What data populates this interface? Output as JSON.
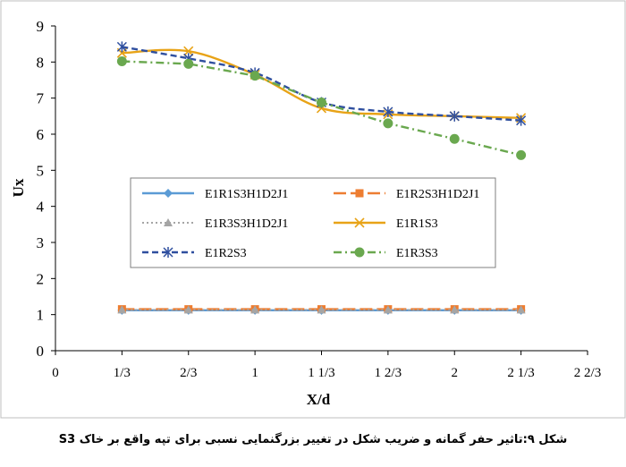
{
  "caption": "شکل ۹:تاثیر حفر گمانه و ضریب شکل در تغییر بزرگنمایی نسبی برای تپه واقع بر خاک S3",
  "chart_data": {
    "type": "line",
    "title": "",
    "xlabel": "X/d",
    "ylabel": "Ux",
    "xlim": [
      0,
      2.6667
    ],
    "ylim": [
      0,
      9
    ],
    "x_ticks": [
      0,
      0.3333,
      0.6667,
      1,
      1.3333,
      1.6667,
      2,
      2.3333,
      2.6667
    ],
    "x_tick_labels": [
      "0",
      "1/3",
      "2/3",
      "1",
      "1 1/3",
      "1 2/3",
      "2",
      "2 1/3",
      "2 2/3"
    ],
    "y_ticks": [
      0,
      1,
      2,
      3,
      4,
      5,
      6,
      7,
      8,
      9
    ],
    "y_tick_labels": [
      "0",
      "1",
      "2",
      "3",
      "4",
      "5",
      "6",
      "7",
      "8",
      "9"
    ],
    "grid": false,
    "legend_placement": "center",
    "series": [
      {
        "name": "E1R1S3H1D2J1",
        "color": "#5b9bd5",
        "dash": "solid",
        "marker": "diamond",
        "smooth": false,
        "x": [
          0.3333,
          0.6667,
          1,
          1.3333,
          1.6667,
          2,
          2.3333
        ],
        "y": [
          1.12,
          1.12,
          1.12,
          1.12,
          1.12,
          1.12,
          1.12
        ]
      },
      {
        "name": "E1R2S3H1D2J1",
        "color": "#ed7d31",
        "dash": "longdash",
        "marker": "square",
        "smooth": false,
        "x": [
          0.3333,
          0.6667,
          1,
          1.3333,
          1.6667,
          2,
          2.3333
        ],
        "y": [
          1.15,
          1.15,
          1.15,
          1.15,
          1.15,
          1.15,
          1.15
        ]
      },
      {
        "name": "E1R3S3H1D2J1",
        "color": "#a5a5a5",
        "dash": "dotted",
        "marker": "triangle",
        "smooth": false,
        "x": [
          0.3333,
          0.6667,
          1,
          1.3333,
          1.6667,
          2,
          2.3333
        ],
        "y": [
          1.13,
          1.13,
          1.13,
          1.13,
          1.13,
          1.13,
          1.13
        ]
      },
      {
        "name": "E1R1S3",
        "color": "#e8a317",
        "dash": "solid",
        "marker": "x",
        "smooth": true,
        "x": [
          0.3333,
          0.6667,
          1,
          1.3333,
          1.6667,
          2,
          2.3333
        ],
        "y": [
          8.25,
          8.3,
          7.65,
          6.72,
          6.55,
          6.5,
          6.45
        ]
      },
      {
        "name": "E1R2S3",
        "color": "#2f4f9f",
        "dash": "dash",
        "marker": "star",
        "smooth": true,
        "x": [
          0.3333,
          0.6667,
          1,
          1.3333,
          1.6667,
          2,
          2.3333
        ],
        "y": [
          8.42,
          8.1,
          7.7,
          6.88,
          6.62,
          6.5,
          6.38
        ]
      },
      {
        "name": "E1R3S3",
        "color": "#6aa84f",
        "dash": "dashdot",
        "marker": "circle",
        "smooth": false,
        "x": [
          0.3333,
          0.6667,
          1,
          1.3333,
          1.6667,
          2,
          2.3333
        ],
        "y": [
          8.02,
          7.95,
          7.62,
          6.88,
          6.3,
          5.87,
          5.42
        ]
      }
    ]
  }
}
